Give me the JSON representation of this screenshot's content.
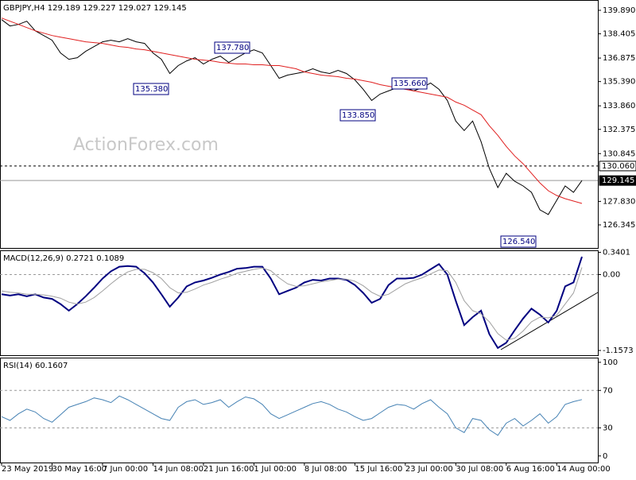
{
  "chart_data": [
    {
      "type": "line",
      "title": "GBPJPY,H4  129.189 129.227 129.027 129.145",
      "watermark": "ActionForex.com",
      "series": [
        {
          "color": "#000000",
          "values": [
            139.3,
            138.9,
            139.0,
            139.2,
            138.6,
            138.3,
            138.0,
            137.2,
            136.8,
            136.9,
            137.3,
            137.6,
            137.9,
            138.0,
            137.9,
            138.1,
            137.9,
            137.8,
            137.2,
            136.8,
            135.9,
            136.4,
            136.7,
            136.9,
            136.5,
            136.8,
            137.0,
            136.6,
            136.9,
            137.2,
            137.4,
            137.2,
            136.4,
            135.6,
            135.8,
            135.9,
            136.0,
            136.2,
            136.0,
            135.9,
            136.1,
            135.9,
            135.5,
            134.9,
            134.2,
            134.6,
            134.8,
            135.0,
            135.0,
            134.8,
            135.0,
            135.3,
            134.9,
            134.2,
            132.9,
            132.3,
            132.9,
            131.6,
            129.9,
            128.7,
            129.6,
            129.1,
            128.8,
            128.4,
            127.3,
            127.0,
            127.9,
            128.8,
            128.4,
            129.145
          ]
        },
        {
          "color": "#e02020",
          "values": [
            139.4,
            139.2,
            139.0,
            138.8,
            138.6,
            138.45,
            138.3,
            138.2,
            138.1,
            138.0,
            137.9,
            137.85,
            137.8,
            137.7,
            137.6,
            137.55,
            137.45,
            137.4,
            137.3,
            137.2,
            137.1,
            137.0,
            136.9,
            136.8,
            136.75,
            136.7,
            136.6,
            136.55,
            136.5,
            136.5,
            136.45,
            136.45,
            136.4,
            136.4,
            136.3,
            136.2,
            136.0,
            135.9,
            135.8,
            135.75,
            135.7,
            135.6,
            135.55,
            135.45,
            135.35,
            135.2,
            135.1,
            135.0,
            134.9,
            134.8,
            134.7,
            134.6,
            134.5,
            134.4,
            134.1,
            133.9,
            133.6,
            133.3,
            132.6,
            132.0,
            131.3,
            130.7,
            130.2,
            129.6,
            129.0,
            128.5,
            128.2,
            128.0,
            127.85,
            127.7
          ]
        }
      ],
      "ylim": [
        124.89,
        140.54
      ],
      "yticks": [
        {
          "value": 139.89,
          "label": "139.890"
        },
        {
          "value": 138.405,
          "label": "138.405"
        },
        {
          "value": 136.875,
          "label": "136.875"
        },
        {
          "value": 135.39,
          "label": "135.390"
        },
        {
          "value": 133.86,
          "label": "133.860"
        },
        {
          "value": 132.375,
          "label": "132.375"
        },
        {
          "value": 130.845,
          "label": "130.845"
        },
        {
          "value": 127.83,
          "label": "127.830"
        },
        {
          "value": 126.345,
          "label": "126.345"
        }
      ],
      "levels": [
        {
          "value": 130.06,
          "label": "130.060",
          "style": "dashed"
        },
        {
          "value": 129.145,
          "label": "129.145",
          "style": "current"
        }
      ],
      "annotations": [
        "137.780",
        "135.380",
        "135.660",
        "133.850",
        "126.540"
      ]
    },
    {
      "type": "line",
      "title": "MACD(12,26,9) 0.2721 0.1089",
      "series": [
        {
          "color": "#000080",
          "values": [
            -0.3,
            -0.32,
            -0.3,
            -0.33,
            -0.3,
            -0.35,
            -0.37,
            -0.45,
            -0.55,
            -0.45,
            -0.33,
            -0.2,
            -0.06,
            0.05,
            0.12,
            0.13,
            0.12,
            0.02,
            -0.12,
            -0.3,
            -0.49,
            -0.35,
            -0.18,
            -0.12,
            -0.09,
            -0.05,
            0,
            0.04,
            0.09,
            0.1,
            0.12,
            0.12,
            -0.06,
            -0.3,
            -0.25,
            -0.2,
            -0.12,
            -0.08,
            -0.09,
            -0.06,
            -0.06,
            -0.08,
            -0.16,
            -0.28,
            -0.43,
            -0.37,
            -0.16,
            -0.06,
            -0.06,
            -0.05,
            0,
            0.08,
            0.16,
            0,
            -0.4,
            -0.77,
            -0.65,
            -0.55,
            -0.91,
            -1.12,
            -1.04,
            -0.85,
            -0.67,
            -0.52,
            -0.61,
            -0.73,
            -0.55,
            -0.18,
            -0.12,
            0.2721
          ]
        },
        {
          "color": "#a0a0a0",
          "values": [
            -0.25,
            -0.27,
            -0.28,
            -0.3,
            -0.3,
            -0.31,
            -0.33,
            -0.36,
            -0.42,
            -0.45,
            -0.42,
            -0.35,
            -0.25,
            -0.14,
            -0.04,
            0.04,
            0.08,
            0.08,
            0.03,
            -0.06,
            -0.2,
            -0.28,
            -0.27,
            -0.22,
            -0.16,
            -0.12,
            -0.07,
            -0.03,
            0.02,
            0.05,
            0.08,
            0.1,
            0.06,
            -0.05,
            -0.14,
            -0.18,
            -0.17,
            -0.14,
            -0.11,
            -0.09,
            -0.07,
            -0.07,
            -0.1,
            -0.17,
            -0.27,
            -0.33,
            -0.3,
            -0.22,
            -0.14,
            -0.09,
            -0.05,
            0.01,
            0.07,
            0.06,
            -0.12,
            -0.4,
            -0.55,
            -0.6,
            -0.72,
            -0.9,
            -1.0,
            -0.97,
            -0.86,
            -0.72,
            -0.65,
            -0.66,
            -0.62,
            -0.45,
            -0.28,
            0.1089
          ]
        }
      ],
      "ylim": [
        -1.23,
        0.37
      ],
      "yticks": [
        0.3401,
        {
          "value": 0,
          "label": "0.00"
        },
        -1.1573
      ],
      "dashed_levels": [
        0
      ]
    },
    {
      "type": "line",
      "title": "RSI(14) 60.1607",
      "categories": [
        "23 May 2019",
        null,
        null,
        null,
        null,
        null,
        "30 May 16:00",
        null,
        null,
        null,
        null,
        null,
        "7 Jun 00:00",
        null,
        null,
        null,
        null,
        null,
        "14 Jun 08:00",
        null,
        null,
        null,
        null,
        null,
        "21 Jun 16:00",
        null,
        null,
        null,
        null,
        null,
        "1 Jul 00:00",
        null,
        null,
        null,
        null,
        null,
        "8 Jul 08:00",
        null,
        null,
        null,
        null,
        null,
        "15 Jul 16:00",
        null,
        null,
        null,
        null,
        null,
        "23 Jul 00:00",
        null,
        null,
        null,
        null,
        null,
        "30 Jul 08:00",
        null,
        null,
        null,
        null,
        null,
        "6 Aug 16:00",
        null,
        null,
        null,
        null,
        null,
        "14 Aug 00:00",
        null,
        null,
        null
      ],
      "series": [
        {
          "color": "#4682b4",
          "values": [
            42,
            38,
            45,
            50,
            47,
            40,
            36,
            44,
            52,
            55,
            58,
            62,
            60,
            57,
            64,
            60,
            55,
            50,
            45,
            40,
            38,
            52,
            58,
            60,
            55,
            57,
            60,
            52,
            58,
            63,
            61,
            55,
            45,
            40,
            44,
            48,
            52,
            56,
            58,
            55,
            50,
            47,
            42,
            38,
            40,
            46,
            52,
            55,
            54,
            50,
            56,
            60,
            52,
            45,
            30,
            25,
            40,
            38,
            28,
            22,
            35,
            40,
            32,
            38,
            45,
            35,
            42,
            55,
            58,
            60.1607
          ]
        }
      ],
      "ylim": [
        -7,
        105
      ],
      "yticks": [
        100,
        70,
        30,
        0
      ],
      "dashed_levels": [
        70,
        30
      ]
    }
  ]
}
